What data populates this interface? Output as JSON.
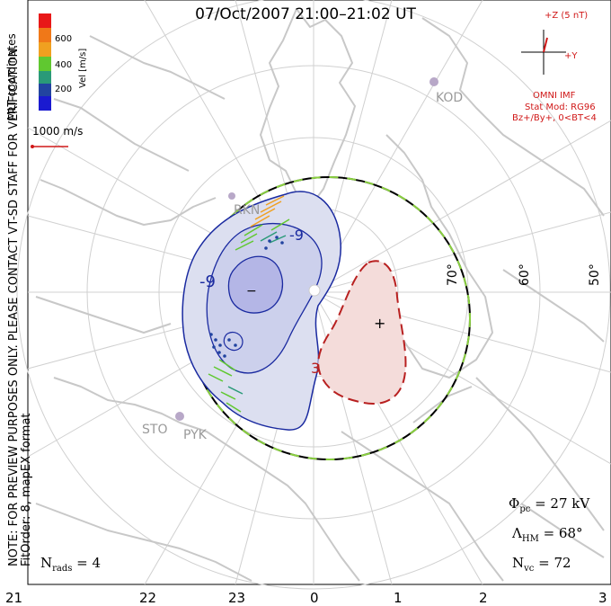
{
  "title": "07/Oct/2007 21:00–21:02 UT",
  "side_note": {
    "line1": "NOTE: FOR PREVIEW PURPOSES ONLY. PLEASE CONTACT VT-SD STAFF FOR VERIFICATION.",
    "line2": "FitOrder: 8, mapEX format"
  },
  "coord_system": "MLT coordinates",
  "velocity_scale": {
    "label": "Vel [m/s]",
    "ticks": [
      "600",
      "400",
      "200"
    ],
    "colors": [
      "#e81818",
      "#f07818",
      "#f0a020",
      "#60c830",
      "#2a9a78",
      "#2244a0",
      "#1a1ad0"
    ]
  },
  "reference_vector": "1000 m/s",
  "imf": {
    "z_label": "+Z (5 nT)",
    "y_label": "+Y",
    "source": "OMNI IMF",
    "model_line1": "Stat Mod: RG96",
    "model_line2": "Bz+/By+, 0<BT<4"
  },
  "sites": [
    "KOD",
    "RKN",
    "STO",
    "PYK"
  ],
  "contour_labels": {
    "neg_a": "-9",
    "neg_b": "-9",
    "pos": "3",
    "neg_extremum": "−",
    "pos_extremum": "+"
  },
  "stats": {
    "phi_pc_sym": "Φ",
    "phi_pc_sub": "pc",
    "phi_pc_val": " = 27 kV",
    "lambda_sym": "Λ",
    "lambda_sub": "HM",
    "lambda_val": " = 68°",
    "nvc_sym": "N",
    "nvc_sub": "vc",
    "nvc_val": " = 72",
    "nrads_sym": "N",
    "nrads_sub": "rads",
    "nrads_val": " = 4"
  },
  "mlt_labels": [
    "21",
    "22",
    "23",
    "0",
    "1",
    "2",
    "3"
  ],
  "lat_labels": [
    "70°",
    "60°",
    "50°"
  ],
  "colors": {
    "negative_contour": "#1a2aa0",
    "negative_fill": "#dcdff0",
    "negative_core": "#b4b6e6",
    "positive_contour": "#b82020",
    "positive_fill": "#f4dcda",
    "boundary_green": "#8ad040",
    "coastline": "#c8c8c8",
    "grid": "#d0d0d0",
    "imf": "#d01818"
  }
}
